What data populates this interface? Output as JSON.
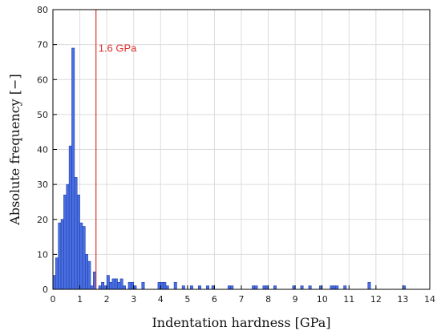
{
  "chart_data": {
    "type": "bar",
    "title": "",
    "xlabel": "Indentation hardness [GPa]",
    "ylabel": "Absolute frequency [−]",
    "xlim": [
      0,
      14
    ],
    "ylim": [
      0,
      80
    ],
    "x_ticks": [
      "0",
      "1",
      "2",
      "3",
      "4",
      "5",
      "6",
      "7",
      "8",
      "9",
      "10",
      "11",
      "12",
      "13",
      "14"
    ],
    "y_ticks": [
      "0",
      "10",
      "20",
      "30",
      "40",
      "50",
      "60",
      "70",
      "80"
    ],
    "grid": true,
    "bin_width": 0.1,
    "bar_color": "#4a6fe3",
    "reference_line": {
      "x": 1.6,
      "label": "1.6 GPa",
      "color": "#e03030"
    },
    "bins": [
      {
        "x": 0.0,
        "y": 4
      },
      {
        "x": 0.1,
        "y": 9
      },
      {
        "x": 0.2,
        "y": 19
      },
      {
        "x": 0.3,
        "y": 20
      },
      {
        "x": 0.4,
        "y": 27
      },
      {
        "x": 0.5,
        "y": 30
      },
      {
        "x": 0.6,
        "y": 41
      },
      {
        "x": 0.7,
        "y": 69
      },
      {
        "x": 0.8,
        "y": 32
      },
      {
        "x": 0.9,
        "y": 27
      },
      {
        "x": 1.0,
        "y": 19
      },
      {
        "x": 1.1,
        "y": 18
      },
      {
        "x": 1.2,
        "y": 10
      },
      {
        "x": 1.3,
        "y": 8
      },
      {
        "x": 1.4,
        "y": 1
      },
      {
        "x": 1.5,
        "y": 5
      },
      {
        "x": 1.6,
        "y": 0
      },
      {
        "x": 1.7,
        "y": 1
      },
      {
        "x": 1.8,
        "y": 2
      },
      {
        "x": 1.9,
        "y": 1
      },
      {
        "x": 2.0,
        "y": 4
      },
      {
        "x": 2.1,
        "y": 2
      },
      {
        "x": 2.2,
        "y": 3
      },
      {
        "x": 2.3,
        "y": 3
      },
      {
        "x": 2.4,
        "y": 2
      },
      {
        "x": 2.5,
        "y": 3
      },
      {
        "x": 2.6,
        "y": 1
      },
      {
        "x": 2.8,
        "y": 2
      },
      {
        "x": 2.9,
        "y": 2
      },
      {
        "x": 3.0,
        "y": 1
      },
      {
        "x": 3.3,
        "y": 2
      },
      {
        "x": 3.9,
        "y": 2
      },
      {
        "x": 4.0,
        "y": 2
      },
      {
        "x": 4.1,
        "y": 2
      },
      {
        "x": 4.2,
        "y": 1
      },
      {
        "x": 4.5,
        "y": 2
      },
      {
        "x": 4.8,
        "y": 1
      },
      {
        "x": 5.1,
        "y": 1
      },
      {
        "x": 5.4,
        "y": 1
      },
      {
        "x": 5.7,
        "y": 1
      },
      {
        "x": 5.9,
        "y": 1
      },
      {
        "x": 6.5,
        "y": 1
      },
      {
        "x": 6.6,
        "y": 1
      },
      {
        "x": 7.4,
        "y": 1
      },
      {
        "x": 7.5,
        "y": 1
      },
      {
        "x": 7.8,
        "y": 1
      },
      {
        "x": 7.9,
        "y": 1
      },
      {
        "x": 8.2,
        "y": 1
      },
      {
        "x": 8.9,
        "y": 1
      },
      {
        "x": 9.2,
        "y": 1
      },
      {
        "x": 9.5,
        "y": 1
      },
      {
        "x": 9.9,
        "y": 1
      },
      {
        "x": 10.3,
        "y": 1
      },
      {
        "x": 10.4,
        "y": 1
      },
      {
        "x": 10.5,
        "y": 1
      },
      {
        "x": 10.8,
        "y": 1
      },
      {
        "x": 11.7,
        "y": 2
      },
      {
        "x": 13.0,
        "y": 1
      }
    ]
  }
}
